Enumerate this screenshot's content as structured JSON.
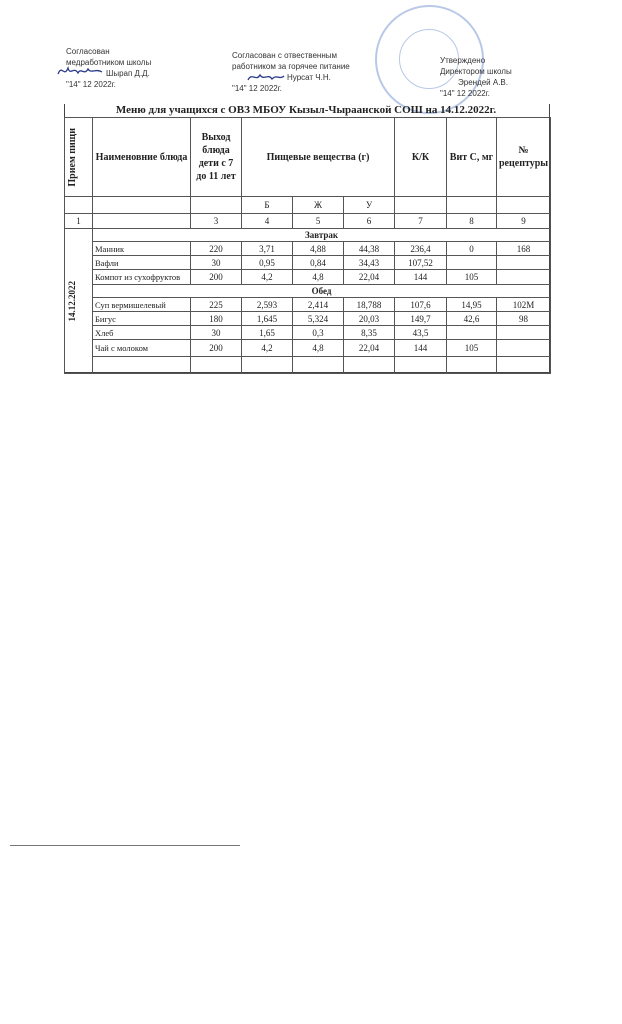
{
  "approvals": {
    "left": {
      "line1": "Согласован",
      "line2": "медработником школы",
      "name": "Шырап Д.Д.",
      "date": "\"14\" 12 2022г.",
      "signature": "Шырап"
    },
    "middle": {
      "line1": "Согласован с отвественным",
      "line2": "работником за горячее питание",
      "name": "Нурсат Ч.Н.",
      "date": "\"14\" 12 2022г.",
      "signature": "Нур"
    },
    "right": {
      "line1": "Утверждено",
      "line2": "Директором школы",
      "name": "Эрендей А.В.",
      "date": "\"14\" 12 2022г.",
      "stamp_text": "МБОУ Кызыл-Чыраанская СОШ"
    }
  },
  "title": "Меню для учащихся с ОВЗ МБОУ Кызыл-Чыраанской СОШ на 14.12.2022г.",
  "headers": {
    "meal": "Прием пищи",
    "dish": "Наименовние блюда",
    "output": "Выход блюда дети с 7 до 11 лет",
    "nutrients": "Пищевые вещества (г)",
    "kk": "К/К",
    "vitc": "Вит С, мг",
    "recipe": "№ рецептуры",
    "b": "Б",
    "zh": "Ж",
    "u": "У"
  },
  "col_numbers": [
    "1",
    "3",
    "4",
    "5",
    "6",
    "7",
    "8",
    "9"
  ],
  "date": "14.12.2022",
  "sections": [
    {
      "name": "Завтрак",
      "rows": [
        [
          "Манник",
          "220",
          "3,71",
          "4,88",
          "44,38",
          "236,4",
          "0",
          "168"
        ],
        [
          "Вафли",
          "30",
          "0,95",
          "0,84",
          "34,43",
          "107,52",
          "",
          ""
        ],
        [
          "Компот из сухофруктов",
          "200",
          "4,2",
          "4,8",
          "22,04",
          "144",
          "105",
          ""
        ]
      ]
    },
    {
      "name": "Обед",
      "rows": [
        [
          "Суп вермишелевый",
          "225",
          "2,593",
          "2,414",
          "18,788",
          "107,6",
          "14,95",
          "102М"
        ],
        [
          "Бигус",
          "180",
          "1,645",
          "5,324",
          "20,03",
          "149,7",
          "42,6",
          "98"
        ],
        [
          "Хлеб",
          "30",
          "1,65",
          "0,3",
          "8,35",
          "43,5",
          "",
          ""
        ],
        [
          "Чай с молоком",
          "200",
          "4,2",
          "4,8",
          "22,04",
          "144",
          "105",
          ""
        ]
      ]
    }
  ]
}
